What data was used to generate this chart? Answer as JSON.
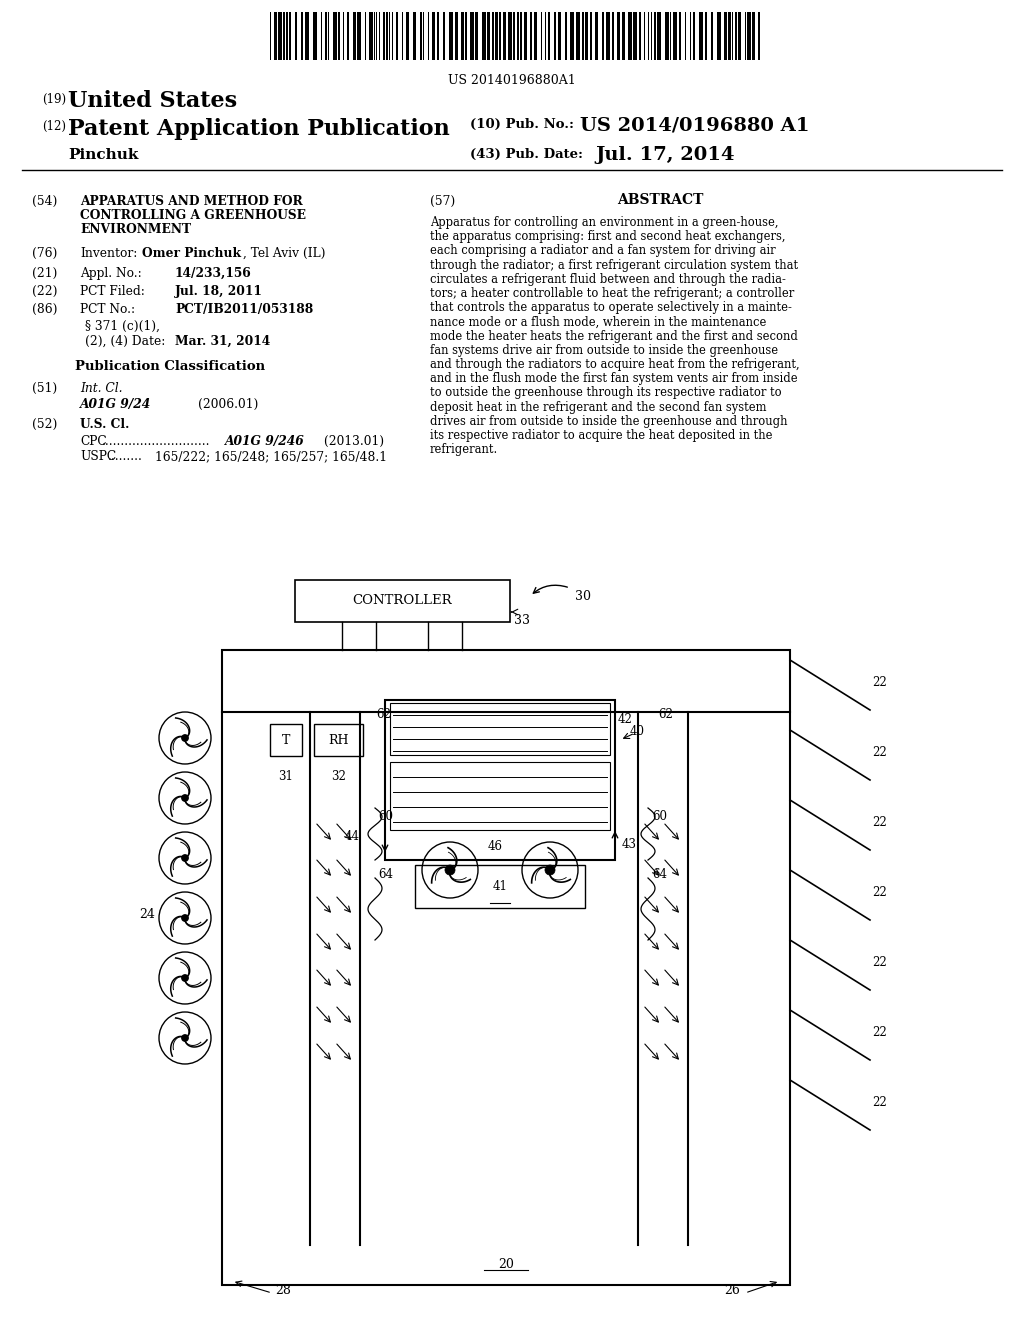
{
  "bg_color": "#ffffff",
  "barcode_text": "US 20140196880A1",
  "abstract_lines": [
    "Apparatus for controlling an environment in a green-house,",
    "the apparatus comprising: first and second heat exchangers,",
    "each comprising a radiator and a fan system for driving air",
    "through the radiator; a first refrigerant circulation system that",
    "circulates a refrigerant fluid between and through the radia-",
    "tors; a heater controllable to heat the refrigerant; a controller",
    "that controls the apparatus to operate selectively in a mainte-",
    "nance mode or a flush mode, wherein in the maintenance",
    "mode the heater heats the refrigerant and the first and second",
    "fan systems drive air from outside to inside the greenhouse",
    "and through the radiators to acquire heat from the refrigerant,",
    "and in the flush mode the first fan system vents air from inside",
    "to outside the greenhouse through its respective radiator to",
    "deposit heat in the refrigerant and the second fan system",
    "drives air from outside to inside the greenhouse and through",
    "its respective radiator to acquire the heat deposited in the",
    "refrigerant."
  ]
}
